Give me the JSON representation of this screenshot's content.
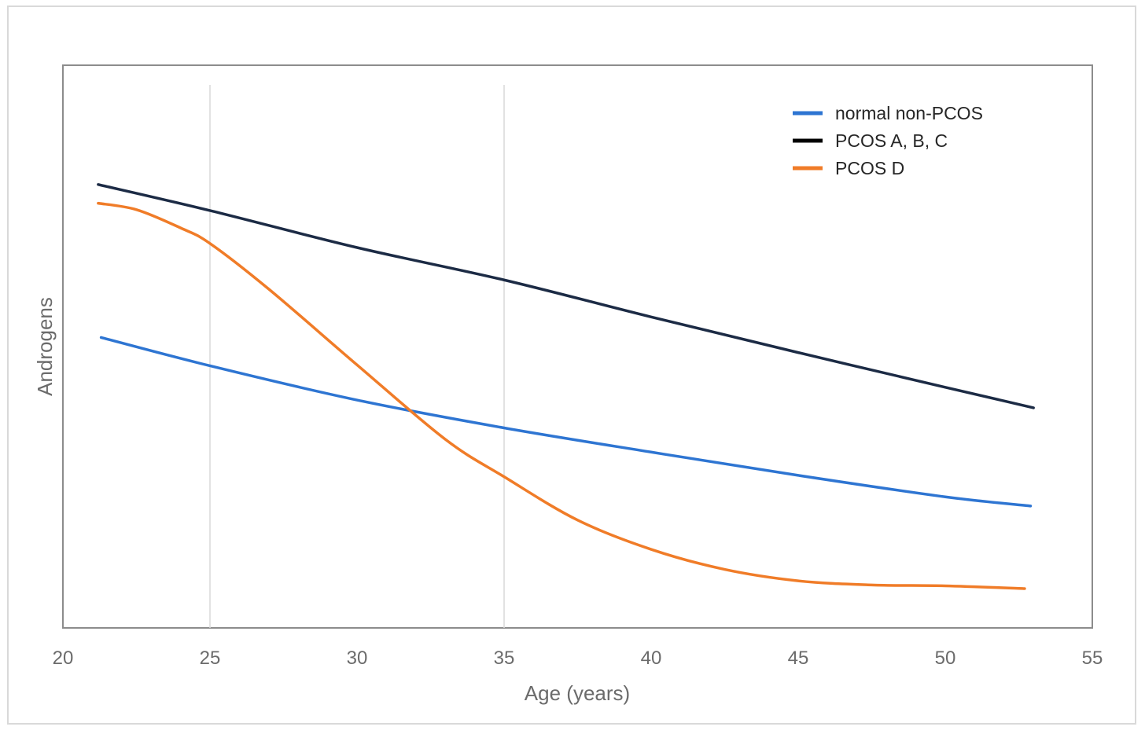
{
  "chart_data": {
    "type": "line",
    "title": "",
    "xlabel": "Age (years)",
    "ylabel": "Androgens",
    "xlim": [
      20,
      55
    ],
    "ylim": [
      0,
      100
    ],
    "xticks": [
      20,
      25,
      30,
      35,
      40,
      45,
      50,
      55
    ],
    "y_tick_labels_shown": false,
    "vertical_gridlines_at": [
      25,
      35
    ],
    "legend_position": "top-right",
    "series": [
      {
        "name": "normal non-PCOS",
        "color": "#2e75d2",
        "x": [
          21.3,
          25,
          30,
          35,
          40,
          45,
          50,
          52.9
        ],
        "y": [
          55,
          48.8,
          41.3,
          35.2,
          29.9,
          24.8,
          20.1,
          18.1
        ]
      },
      {
        "name": "PCOS A, B, C",
        "color": "#1c2b45",
        "x": [
          21.2,
          25,
          30,
          35,
          40,
          45,
          50,
          53.0
        ],
        "y": [
          88.5,
          82.8,
          74.7,
          67.6,
          59.5,
          51.7,
          44.1,
          39.6
        ]
      },
      {
        "name": "PCOS D",
        "color": "#f07c28",
        "x": [
          21.2,
          22.5,
          24,
          25,
          27,
          30,
          33,
          35,
          37.5,
          40,
          42.5,
          45,
          47.5,
          50,
          52.7
        ],
        "y": [
          84.4,
          83,
          79,
          75.6,
          65.6,
          49.0,
          32.7,
          24.5,
          15.0,
          8.6,
          4.2,
          1.7,
          0.8,
          0.6,
          0
        ]
      }
    ]
  }
}
